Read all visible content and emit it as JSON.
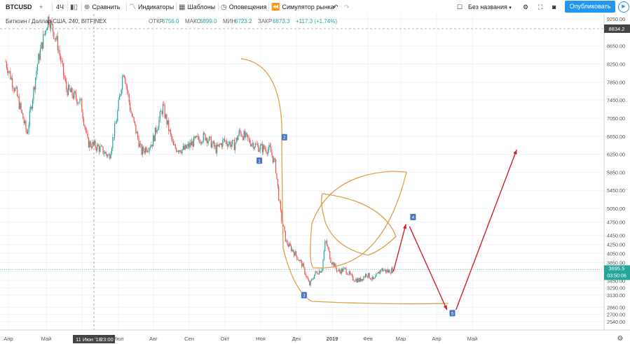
{
  "toolbar": {
    "symbol": "BTCUSD",
    "interval": "4Ч",
    "compare": "Сравнить",
    "indicators": "Индикаторы",
    "templates": "Шаблоны",
    "alerts": "Оповещения",
    "simulator": "Симулятор рынка",
    "layout_name": "Без названия",
    "publish": "Опубликовать"
  },
  "legend": {
    "title": "Биткоин / Доллар США, 240, BITFINEX",
    "open_label": "ОТКР",
    "open": "6756.0",
    "high_label": "МАКС",
    "high": "6899.0",
    "low_label": "МИН",
    "low": "6723.2",
    "close_label": "ЗАКР",
    "close": "6873.3",
    "change": "+117.3 (+1.74%)"
  },
  "crosshair": {
    "date_label": "11 Июн '18",
    "time_label": "23:00",
    "price_label": "8834.2"
  },
  "last_price": {
    "price": "3695.5",
    "countdown": "03:50:06"
  },
  "colors": {
    "up": "#26a69a",
    "down": "#ef5350",
    "arc": "#e0a04a",
    "arrow": "#d0202a",
    "marker": "#4a72c4",
    "last": "#26a69a"
  },
  "chart_data": {
    "type": "candlestick",
    "title": "Биткоин / Доллар США, 240, BITFINEX",
    "y_ticks": [
      2540,
      2700,
      2860,
      3130,
      3290,
      3450,
      3650,
      3850,
      4050,
      4250,
      4450,
      4750,
      5050,
      5450,
      5850,
      6250,
      6650,
      7050,
      7450,
      7850,
      8250,
      8650,
      9250
    ],
    "x_ticks": [
      "Апр",
      "Май",
      "Июн",
      "Июл",
      "Авг",
      "Сен",
      "Окт",
      "Ноя",
      "Дек",
      "2019",
      "Фев",
      "Мар",
      "Апр",
      "Май"
    ],
    "price_path": [
      [
        0,
        8300
      ],
      [
        0.3,
        7600
      ],
      [
        0.6,
        6700
      ],
      [
        0.9,
        8300
      ],
      [
        1.2,
        9300
      ],
      [
        1.45,
        8700
      ],
      [
        1.7,
        7700
      ],
      [
        2.1,
        7400
      ],
      [
        2.3,
        6500
      ],
      [
        2.6,
        6400
      ],
      [
        2.9,
        6200
      ],
      [
        3.1,
        7000
      ],
      [
        3.3,
        8150
      ],
      [
        3.5,
        7200
      ],
      [
        3.8,
        6300
      ],
      [
        4.1,
        6500
      ],
      [
        4.4,
        7300
      ],
      [
        4.7,
        6400
      ],
      [
        5.0,
        6350
      ],
      [
        5.3,
        6550
      ],
      [
        5.6,
        6650
      ],
      [
        5.9,
        6350
      ],
      [
        6.1,
        6550
      ],
      [
        6.4,
        6450
      ],
      [
        6.55,
        6750
      ],
      [
        6.8,
        6550
      ],
      [
        7.1,
        6400
      ],
      [
        7.4,
        6350
      ],
      [
        7.55,
        6000
      ],
      [
        7.6,
        5600
      ],
      [
        7.7,
        4900
      ],
      [
        7.85,
        4300
      ],
      [
        8.05,
        4100
      ],
      [
        8.3,
        3800
      ],
      [
        8.5,
        3350
      ],
      [
        8.65,
        3600
      ],
      [
        8.85,
        3700
      ],
      [
        8.95,
        4350
      ],
      [
        9.1,
        3900
      ],
      [
        9.3,
        3650
      ],
      [
        9.5,
        3700
      ],
      [
        9.7,
        3500
      ],
      [
        9.9,
        3450
      ],
      [
        10.1,
        3600
      ],
      [
        10.3,
        3450
      ],
      [
        10.5,
        3700
      ],
      [
        10.7,
        3650
      ],
      [
        10.85,
        3695
      ]
    ],
    "markers": [
      {
        "id": "1",
        "x": 7.1,
        "y": 6100
      },
      {
        "id": "2",
        "x": 7.8,
        "y": 6620
      },
      {
        "id": "3",
        "x": 8.35,
        "y": 3120
      },
      {
        "id": "4",
        "x": 11.4,
        "y": 4850
      },
      {
        "id": "5",
        "x": 12.5,
        "y": 2720
      }
    ],
    "arrows": [
      {
        "from": [
          10.85,
          3650
        ],
        "to": [
          11.2,
          4700
        ]
      },
      {
        "from": [
          11.3,
          4650
        ],
        "to": [
          12.35,
          2800
        ]
      },
      {
        "from": [
          12.6,
          2800
        ],
        "to": [
          14.3,
          6350
        ]
      }
    ],
    "last_price": 3695.5
  }
}
